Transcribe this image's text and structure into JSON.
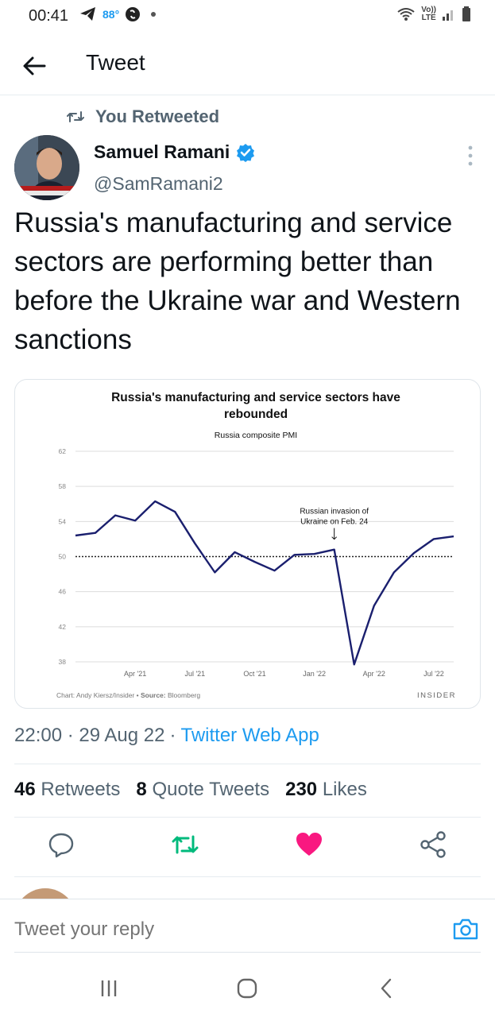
{
  "status_bar": {
    "time": "00:41",
    "temperature": "88°",
    "network_top": "Vo))",
    "network_bottom": "LTE"
  },
  "header": {
    "title": "Tweet"
  },
  "tweet": {
    "retweet_label": "You Retweeted",
    "author_name": "Samuel Ramani",
    "author_handle": "@SamRamani2",
    "text": "Russia's manufacturing and service sectors are performing better than before the Ukraine war and Western sanctions",
    "timestamp": "22:00 · 29 Aug 22",
    "separator": "·",
    "source": "Twitter Web App",
    "retweets_count": "46",
    "retweets_label": "Retweets",
    "quotes_count": "8",
    "quotes_label": "Quote Tweets",
    "likes_count": "230",
    "likes_label": "Likes"
  },
  "icons": {
    "back": "arrow-left-icon",
    "retweet": "retweet-icon",
    "verified": "verified-badge-icon",
    "more": "more-vertical-icon",
    "reply": "reply-icon",
    "like": "heart-icon",
    "share": "share-icon",
    "camera": "camera-icon"
  },
  "colors": {
    "accent": "#1d9bf0",
    "retweet_active": "#00ba7c",
    "like_active": "#f91880",
    "line": "#1a1f6e"
  },
  "reply_bar": {
    "placeholder": "Tweet your reply"
  },
  "chart_data": {
    "type": "line",
    "title": "Russia's manufacturing and service sectors have rebounded",
    "subtitle": "Russia composite PMI",
    "x_ticks": [
      "Apr '21",
      "Jul '21",
      "Oct '21",
      "Jan '22",
      "Apr '22",
      "Jul '22"
    ],
    "y_ticks": [
      38,
      42,
      46,
      50,
      54,
      58,
      62
    ],
    "ylim": [
      38,
      62
    ],
    "reference_line": 50,
    "annotation": "Russian invasion of Ukraine on Feb. 24",
    "credit_prefix": "Chart: Andy Kiersz/Insider",
    "credit_source_label": "Source:",
    "credit_source": "Bloomberg",
    "brand": "INSIDER",
    "series": [
      {
        "x": [
          "Jan '21",
          "Feb '21",
          "Mar '21",
          "Apr '21",
          "May '21",
          "Jun '21",
          "Jul '21",
          "Aug '21",
          "Sep '21",
          "Oct '21",
          "Nov '21",
          "Dec '21",
          "Jan '22",
          "Feb '22",
          "Mar '22",
          "Apr '22",
          "May '22",
          "Jun '22",
          "Jul '22",
          "Aug '22"
        ],
        "values": [
          52.4,
          52.7,
          54.7,
          54.1,
          56.3,
          55.1,
          51.5,
          48.2,
          50.5,
          49.4,
          48.4,
          50.2,
          50.3,
          50.8,
          37.7,
          44.4,
          48.2,
          50.4,
          52.0,
          52.3
        ]
      }
    ]
  }
}
